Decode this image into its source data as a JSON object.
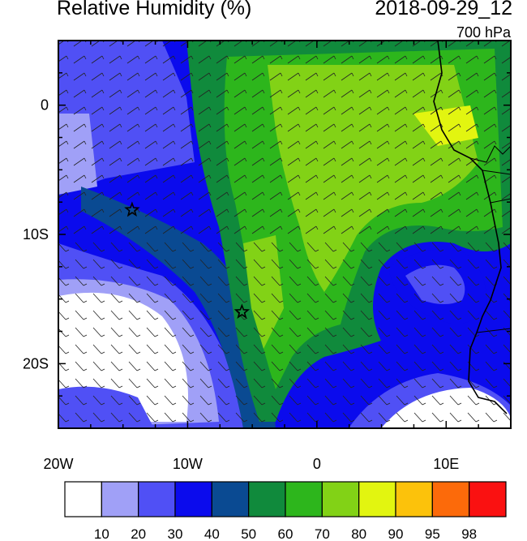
{
  "header": {
    "title": "Relative Humidity (%)",
    "datetime": "2018-09-29_12",
    "level": "700 hPa"
  },
  "map": {
    "lon_range": [
      -20,
      15
    ],
    "lat_range": [
      -25,
      5
    ],
    "xaxis": {
      "ticks": [
        {
          "value": -20,
          "label": "20W"
        },
        {
          "value": -10,
          "label": "10W"
        },
        {
          "value": 0,
          "label": "0"
        },
        {
          "value": 10,
          "label": "10E"
        }
      ]
    },
    "yaxis": {
      "ticks": [
        {
          "value": 0,
          "label": "0"
        },
        {
          "value": -10,
          "label": "10S"
        },
        {
          "value": -20,
          "label": "20S"
        }
      ]
    },
    "markers": [
      {
        "name": "star",
        "lon": -14.3,
        "lat": -8.1
      },
      {
        "name": "star",
        "lon": -5.8,
        "lat": -16.0
      }
    ],
    "overlay": "wind-barbs"
  },
  "colorbar": {
    "levels": [
      "10",
      "20",
      "30",
      "40",
      "50",
      "60",
      "70",
      "80",
      "90",
      "95",
      "98"
    ],
    "colors": [
      "#ffffff",
      "#a0a0f7",
      "#5050f5",
      "#0b0bed",
      "#0a4a92",
      "#108a3c",
      "#2db61c",
      "#82d216",
      "#e2f510",
      "#fcc20b",
      "#fc6a0a",
      "#fa1111"
    ]
  }
}
